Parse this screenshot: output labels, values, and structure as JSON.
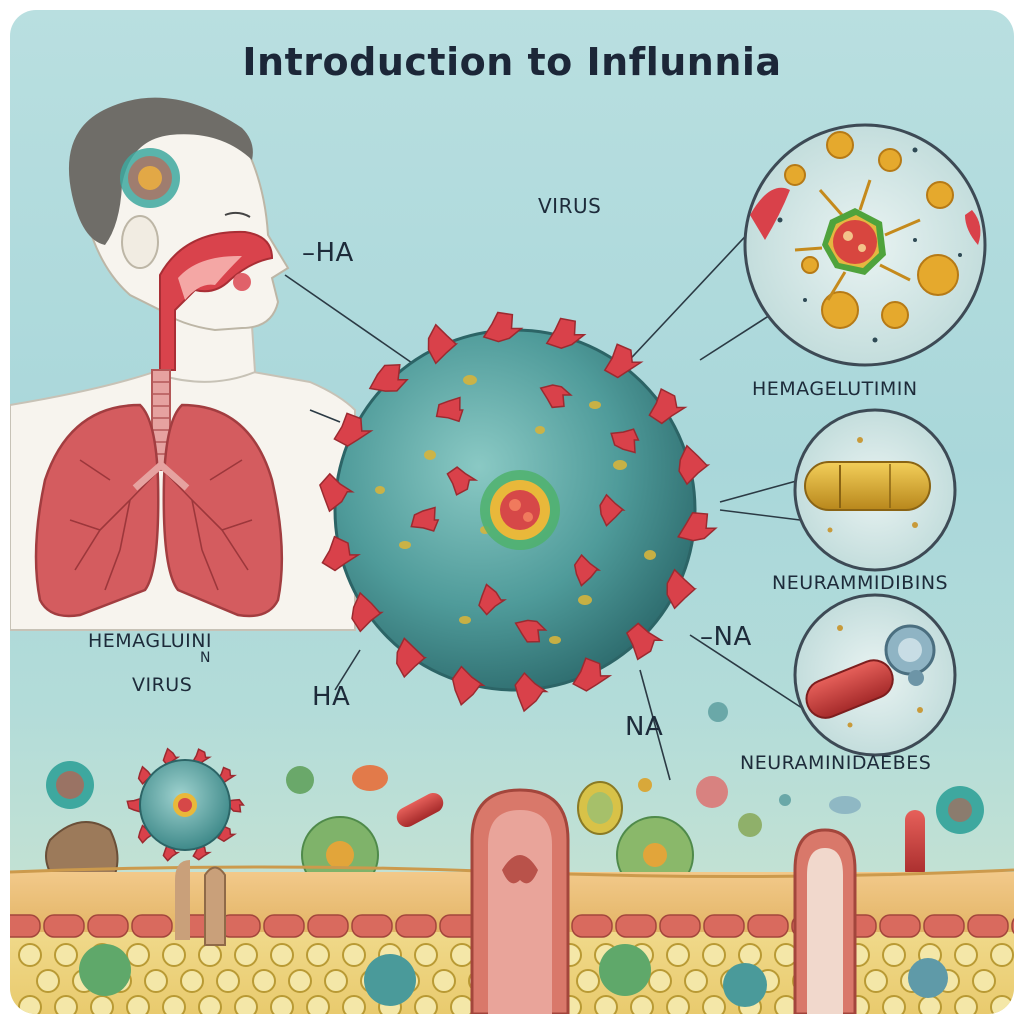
{
  "title": "Introduction to Influnnia",
  "labels": {
    "virus_top": "VIRUS",
    "ha_top": "–HA",
    "hemagglutinin_right": "HEMAGELUTIMIN",
    "neuraminidase_right": "NEURAMMIDIBINS",
    "na_right": "–NA",
    "neuraminidase_bottom_right": "NEURAMINIDAEBES",
    "hemagglutinin_left": "HEMAGLUINI",
    "hemagglutinin_left_suffix": "N",
    "virus_left": "VIRUS",
    "ha_bottom": "HA",
    "na_bottom": "NA"
  },
  "colors": {
    "background": "#a9d7da",
    "spike": "#d9414a",
    "virus_body": "#4f9b9a",
    "lung": "#d45c5f",
    "skin": "#f7f4ee",
    "tissue": "#e8b96a",
    "cell_wall": "#cf5a4e"
  },
  "icons": [
    "person-head-icon",
    "lungs-icon",
    "virus-icon",
    "magnifier-icon",
    "capsule-icon"
  ]
}
